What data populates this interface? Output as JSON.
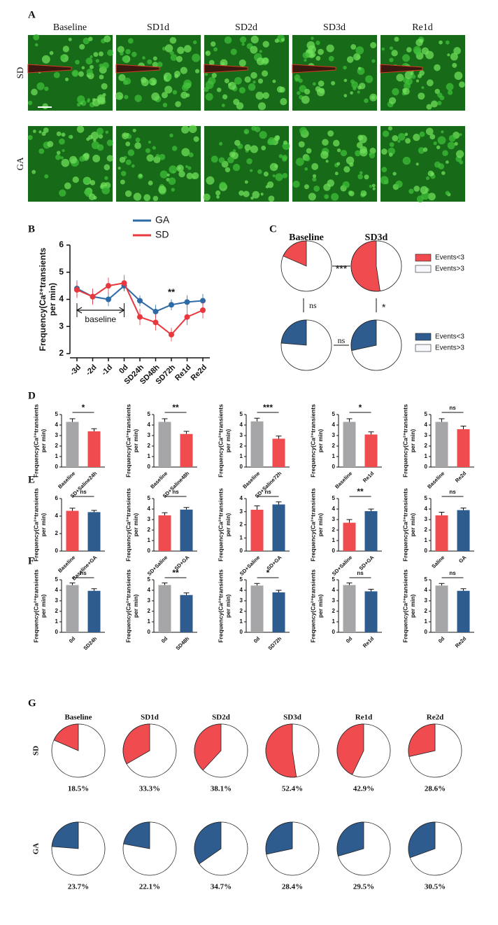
{
  "panel_a": {
    "label": "A",
    "columns": [
      "Baseline",
      "SD1d",
      "SD2d",
      "SD3d",
      "Re1d"
    ],
    "rows": [
      "SD",
      "GA"
    ]
  },
  "chart_data": [
    {
      "type": "line",
      "panel": "B",
      "ylabel": [
        "Frequency(Ca²⁺transients",
        "per min)"
      ],
      "categories": [
        "-3d",
        "-2d",
        "-1d",
        "0d",
        "SD24h",
        "SD48h",
        "SD72h",
        "Re1d",
        "Re2d"
      ],
      "ylim": [
        2,
        6
      ],
      "yticks": [
        2,
        3,
        4,
        5,
        6
      ],
      "series": [
        {
          "name": "GA",
          "color": "#2e6aa6",
          "values": [
            4.4,
            4.1,
            4.0,
            4.5,
            3.95,
            3.55,
            3.8,
            3.9,
            3.95
          ],
          "errors": [
            0.3,
            0.25,
            0.25,
            0.2,
            0.2,
            0.25,
            0.2,
            0.25,
            0.25
          ]
        },
        {
          "name": "SD",
          "color": "#e8383d",
          "values": [
            4.35,
            4.1,
            4.5,
            4.6,
            3.35,
            3.15,
            2.7,
            3.35,
            3.6
          ],
          "errors": [
            0.3,
            0.3,
            0.3,
            0.3,
            0.3,
            0.3,
            0.25,
            0.3,
            0.3
          ]
        }
      ],
      "annotations": [
        "**",
        "baseline"
      ]
    },
    {
      "type": "pie",
      "panel": "C",
      "categories": [
        "Baseline",
        "SD3d"
      ],
      "series": [
        {
          "color": "#f04b4f",
          "values": [
            18.5,
            52.4
          ]
        },
        {
          "color": "#2f5c8f",
          "values": [
            23.7,
            28.4
          ]
        }
      ],
      "legends": [
        [
          {
            "label": "Events<3",
            "color": "#f04b4f"
          },
          {
            "label": "Events>3",
            "color": "#f6f8fb"
          }
        ],
        [
          {
            "label": "Events<3",
            "color": "#2f5c8f"
          },
          {
            "label": "Events>3",
            "color": "#f6f8fb"
          }
        ]
      ],
      "stats": [
        "***",
        "ns",
        "ns",
        "*"
      ]
    },
    {
      "type": "bar",
      "panel": "D",
      "ylabel": [
        "Frequency(Ca²⁺transients",
        "per min)"
      ],
      "categories": [
        "Baseline",
        "SD+Saline24h"
      ],
      "values": [
        4.3,
        3.4
      ],
      "errors": [
        0.3,
        0.25
      ],
      "colors": [
        "#a6a6a8",
        "#f04b4f"
      ],
      "ylim": [
        0,
        5
      ],
      "yticks": [
        0,
        1,
        2,
        3,
        4,
        5
      ],
      "sig": "*"
    },
    {
      "type": "bar",
      "ylabel": [
        "Frequency(Ca²⁺transients",
        "per min)"
      ],
      "categories": [
        "Baseline",
        "SD+Saline48h"
      ],
      "values": [
        4.3,
        3.15
      ],
      "errors": [
        0.3,
        0.25
      ],
      "colors": [
        "#a6a6a8",
        "#f04b4f"
      ],
      "ylim": [
        0,
        5
      ],
      "yticks": [
        0,
        1,
        2,
        3,
        4,
        5
      ],
      "sig": "**"
    },
    {
      "type": "bar",
      "ylabel": [
        "Frequency(Ca²⁺transients",
        "per min)"
      ],
      "categories": [
        "Baseline",
        "SD+Saline72h"
      ],
      "values": [
        4.35,
        2.7
      ],
      "errors": [
        0.3,
        0.25
      ],
      "colors": [
        "#a6a6a8",
        "#f04b4f"
      ],
      "ylim": [
        0,
        5
      ],
      "yticks": [
        0,
        1,
        2,
        3,
        4,
        5
      ],
      "sig": "***"
    },
    {
      "type": "bar",
      "ylabel": [
        "Frequency(Ca²⁺transients",
        "per min)"
      ],
      "categories": [
        "Baseline",
        "Re1d"
      ],
      "values": [
        4.3,
        3.1
      ],
      "errors": [
        0.3,
        0.25
      ],
      "colors": [
        "#a6a6a8",
        "#f04b4f"
      ],
      "ylim": [
        0,
        5
      ],
      "yticks": [
        0,
        1,
        2,
        3,
        4,
        5
      ],
      "sig": "*"
    },
    {
      "type": "bar",
      "ylabel": [
        "Frequency(Ca²⁺transients",
        "per min)"
      ],
      "categories": [
        "Baseline",
        "Re2d"
      ],
      "values": [
        4.3,
        3.6
      ],
      "errors": [
        0.3,
        0.3
      ],
      "colors": [
        "#a6a6a8",
        "#f04b4f"
      ],
      "ylim": [
        0,
        5
      ],
      "yticks": [
        0,
        1,
        2,
        3,
        4,
        5
      ],
      "sig": "ns"
    },
    {
      "type": "bar",
      "panel": "E",
      "ylabel": [
        "Frequency(Ca²⁺transients",
        "per min)"
      ],
      "categories": [
        "Baseline",
        "Baseline+GA"
      ],
      "values": [
        4.6,
        4.45
      ],
      "errors": [
        0.3,
        0.2
      ],
      "colors": [
        "#f04b4f",
        "#2f5c8f"
      ],
      "ylim": [
        0,
        6
      ],
      "yticks": [
        0,
        2,
        4,
        6
      ],
      "sig": "ns"
    },
    {
      "type": "bar",
      "ylabel": [
        "Frequency(Ca²⁺transients",
        "per min)"
      ],
      "categories": [
        "SD+Saline",
        "SD+GA"
      ],
      "values": [
        3.4,
        3.95
      ],
      "errors": [
        0.25,
        0.2
      ],
      "colors": [
        "#f04b4f",
        "#2f5c8f"
      ],
      "ylim": [
        0,
        5
      ],
      "yticks": [
        0,
        1,
        2,
        3,
        4,
        5
      ],
      "sig": "ns"
    },
    {
      "type": "bar",
      "ylabel": [
        "Frequency(Ca²⁺transients",
        "per min)"
      ],
      "categories": [
        "SD+Saline",
        "SD+GA"
      ],
      "values": [
        3.15,
        3.55
      ],
      "errors": [
        0.3,
        0.2
      ],
      "colors": [
        "#f04b4f",
        "#2f5c8f"
      ],
      "ylim": [
        0,
        4
      ],
      "yticks": [
        0,
        1,
        2,
        3,
        4
      ],
      "sig": "ns"
    },
    {
      "type": "bar",
      "ylabel": [
        "Frequency(Ca²⁺transients",
        "per min)"
      ],
      "categories": [
        "SD+Saline",
        "SD+GA"
      ],
      "values": [
        2.7,
        3.8
      ],
      "errors": [
        0.3,
        0.2
      ],
      "colors": [
        "#f04b4f",
        "#2f5c8f"
      ],
      "ylim": [
        0,
        5
      ],
      "yticks": [
        0,
        1,
        2,
        3,
        4,
        5
      ],
      "sig": "**"
    },
    {
      "type": "bar",
      "ylabel": [
        "Frequency(Ca²⁺transients",
        "per min)"
      ],
      "categories": [
        "Saline",
        "GA"
      ],
      "values": [
        3.4,
        3.9
      ],
      "errors": [
        0.3,
        0.2
      ],
      "colors": [
        "#f04b4f",
        "#2f5c8f"
      ],
      "ylim": [
        0,
        5
      ],
      "yticks": [
        0,
        1,
        2,
        3,
        4,
        5
      ],
      "sig": "ns"
    },
    {
      "type": "bar",
      "panel": "F",
      "ylabel": [
        "Frequency(Ca²⁺transients",
        "per min)"
      ],
      "categories": [
        "0d",
        "SD24h"
      ],
      "values": [
        4.5,
        3.95
      ],
      "errors": [
        0.2,
        0.2
      ],
      "colors": [
        "#a6a6a8",
        "#2f5c8f"
      ],
      "ylim": [
        0,
        5
      ],
      "yticks": [
        0,
        1,
        2,
        3,
        4,
        5
      ],
      "sig": "ns"
    },
    {
      "type": "bar",
      "ylabel": [
        "Frequency(Ca²⁺transients",
        "per min)"
      ],
      "categories": [
        "0d",
        "SD48h"
      ],
      "values": [
        4.5,
        3.55
      ],
      "errors": [
        0.2,
        0.2
      ],
      "colors": [
        "#a6a6a8",
        "#2f5c8f"
      ],
      "ylim": [
        0,
        5
      ],
      "yticks": [
        0,
        1,
        2,
        3,
        4,
        5
      ],
      "sig": "**"
    },
    {
      "type": "bar",
      "ylabel": [
        "Frequency(Ca²⁺transients",
        "per min)"
      ],
      "categories": [
        "0d",
        "SD72h"
      ],
      "values": [
        4.45,
        3.8
      ],
      "errors": [
        0.2,
        0.2
      ],
      "colors": [
        "#a6a6a8",
        "#2f5c8f"
      ],
      "ylim": [
        0,
        5
      ],
      "yticks": [
        0,
        1,
        2,
        3,
        4,
        5
      ],
      "sig": "*"
    },
    {
      "type": "bar",
      "ylabel": [
        "Frequency(Ca²⁺transients",
        "per min)"
      ],
      "categories": [
        "0d",
        "Re1d"
      ],
      "values": [
        4.5,
        3.9
      ],
      "errors": [
        0.2,
        0.2
      ],
      "colors": [
        "#a6a6a8",
        "#2f5c8f"
      ],
      "ylim": [
        0,
        5
      ],
      "yticks": [
        0,
        1,
        2,
        3,
        4,
        5
      ],
      "sig": "ns"
    },
    {
      "type": "bar",
      "ylabel": [
        "Frequency(Ca²⁺transients",
        "per min)"
      ],
      "categories": [
        "0d",
        "Re2d"
      ],
      "values": [
        4.45,
        3.95
      ],
      "errors": [
        0.2,
        0.2
      ],
      "colors": [
        "#a6a6a8",
        "#2f5c8f"
      ],
      "ylim": [
        0,
        5
      ],
      "yticks": [
        0,
        1,
        2,
        3,
        4,
        5
      ],
      "sig": "ns"
    },
    {
      "type": "pie",
      "panel": "G",
      "categories": [
        "Baseline",
        "SD1d",
        "SD2d",
        "SD3d",
        "Re1d",
        "Re2d"
      ],
      "series": [
        {
          "name": "SD",
          "color": "#f04b4f",
          "values": [
            18.5,
            33.3,
            38.1,
            52.4,
            42.9,
            28.6
          ],
          "value_labels": [
            "18.5%",
            "33.3%",
            "38.1%",
            "52.4%",
            "42.9%",
            "28.6%"
          ]
        },
        {
          "name": "GA",
          "color": "#2f5c8f",
          "values": [
            23.7,
            22.1,
            34.7,
            28.4,
            29.5,
            30.5
          ],
          "value_labels": [
            "23.7%",
            "22.1%",
            "34.7%",
            "28.4%",
            "29.5%",
            "30.5%"
          ]
        }
      ]
    }
  ]
}
